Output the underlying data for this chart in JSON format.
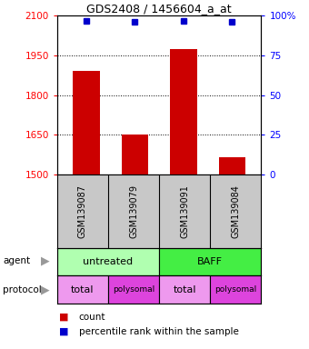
{
  "title": "GDS2408 / 1456604_a_at",
  "samples": [
    "GSM139087",
    "GSM139079",
    "GSM139091",
    "GSM139084"
  ],
  "bar_values": [
    1893,
    1650,
    1975,
    1565
  ],
  "percentile_values": [
    97,
    96,
    97,
    96
  ],
  "ylim_left": [
    1500,
    2100
  ],
  "ylim_right": [
    0,
    100
  ],
  "yticks_left": [
    1500,
    1650,
    1800,
    1950,
    2100
  ],
  "yticks_right": [
    0,
    25,
    50,
    75,
    100
  ],
  "ytick_labels_right": [
    "0",
    "25",
    "50",
    "75",
    "100%"
  ],
  "bar_color": "#cc0000",
  "dot_color": "#0000cc",
  "bar_width": 0.55,
  "agent_label": "agent",
  "protocol_label": "protocol",
  "legend_red_label": "count",
  "legend_blue_label": "percentile rank within the sample",
  "bg_color": "#ffffff",
  "label_area_color": "#c8c8c8",
  "agent_untreated_color": "#b0ffb0",
  "agent_baff_color": "#44ee44",
  "proto_total_color": "#ee99ee",
  "proto_polysomal_color": "#dd44dd"
}
